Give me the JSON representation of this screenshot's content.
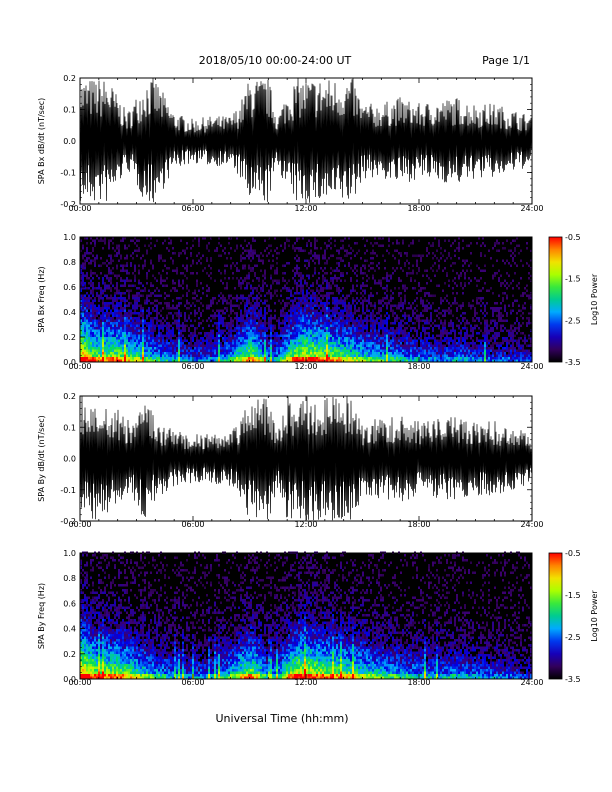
{
  "header": {
    "date_range": "2018/05/10  00:00-24:00 UT",
    "page": "Page 1/1"
  },
  "x_axis": {
    "label": "Universal Time (hh:mm)",
    "ticks": [
      "00:00",
      "06:00",
      "12:00",
      "18:00",
      "24:00"
    ]
  },
  "chart_data": [
    {
      "type": "line",
      "ylabel": "SPA Bx dB/dt (nT/sec)",
      "xlim": [
        0,
        24
      ],
      "ylim": [
        -0.2,
        0.2
      ],
      "yticks": [
        "-0.2",
        "-0.1",
        "0.0",
        "0.1",
        "0.2"
      ],
      "x_unit": "hours UT",
      "amplitude_envelope": {
        "x": [
          0,
          1.5,
          2.5,
          3.5,
          4,
          5,
          6,
          7,
          8,
          8.5,
          9,
          9.5,
          10,
          10.5,
          11,
          11.5,
          12,
          12.5,
          13,
          14,
          14.5,
          15,
          16,
          17,
          18,
          19,
          20,
          21,
          22,
          23,
          24
        ],
        "y": [
          0.2,
          0.2,
          0.09,
          0.2,
          0.2,
          0.09,
          0.07,
          0.08,
          0.08,
          0.12,
          0.2,
          0.2,
          0.2,
          0.08,
          0.16,
          0.2,
          0.2,
          0.2,
          0.2,
          0.2,
          0.2,
          0.12,
          0.12,
          0.14,
          0.12,
          0.13,
          0.14,
          0.12,
          0.12,
          0.1,
          0.08
        ]
      }
    },
    {
      "type": "heatmap",
      "ylabel": "SPA Bx Freq (Hz)",
      "xlim": [
        0,
        24
      ],
      "ylim": [
        0.0,
        1.0
      ],
      "yticks": [
        "0.0",
        "0.2",
        "0.4",
        "0.6",
        "0.8",
        "1.0"
      ],
      "colorbar": {
        "label": "Log10 Power",
        "ticks": [
          "-0.5",
          "-1.5",
          "-2.5",
          "-3.5"
        ],
        "range": [
          -3.5,
          -0.5
        ]
      },
      "activity": {
        "x": [
          0,
          0.5,
          1,
          2,
          3,
          4,
          5,
          6,
          7,
          8,
          8.5,
          9,
          9.5,
          10,
          10.5,
          11,
          11.5,
          12,
          13,
          14,
          15,
          16,
          17,
          18,
          19,
          20,
          21,
          22,
          23,
          24
        ],
        "level": [
          1.0,
          0.8,
          0.7,
          0.75,
          0.6,
          0.45,
          0.35,
          0.3,
          0.3,
          0.45,
          0.6,
          0.75,
          0.6,
          0.35,
          0.4,
          0.65,
          0.8,
          0.85,
          0.75,
          0.65,
          0.55,
          0.45,
          0.4,
          0.35,
          0.3,
          0.35,
          0.3,
          0.25,
          0.25,
          0.2
        ]
      }
    },
    {
      "type": "line",
      "ylabel": "SPA By dB/dt (nT/sec)",
      "xlim": [
        0,
        24
      ],
      "ylim": [
        -0.2,
        0.2
      ],
      "yticks": [
        "-0.2",
        "-0.1",
        "0.0",
        "0.1",
        "0.2"
      ],
      "x_unit": "hours UT",
      "amplitude_envelope": {
        "x": [
          0,
          1.5,
          2.5,
          3.5,
          4,
          5,
          6,
          7,
          8,
          8.5,
          9,
          9.5,
          10,
          10.5,
          11,
          11.5,
          12,
          12.5,
          13,
          14,
          14.5,
          15,
          16,
          17,
          18,
          19,
          20,
          21,
          22,
          23,
          24
        ],
        "y": [
          0.2,
          0.2,
          0.12,
          0.2,
          0.13,
          0.09,
          0.08,
          0.08,
          0.09,
          0.12,
          0.2,
          0.2,
          0.2,
          0.1,
          0.2,
          0.2,
          0.2,
          0.2,
          0.2,
          0.2,
          0.2,
          0.12,
          0.13,
          0.14,
          0.12,
          0.13,
          0.14,
          0.12,
          0.12,
          0.1,
          0.08
        ]
      }
    },
    {
      "type": "heatmap",
      "ylabel": "SPA By Freq (Hz)",
      "xlim": [
        0,
        24
      ],
      "ylim": [
        0.0,
        1.0
      ],
      "yticks": [
        "0.0",
        "0.2",
        "0.4",
        "0.6",
        "0.8",
        "1.0"
      ],
      "colorbar": {
        "label": "Log10 Power",
        "ticks": [
          "-0.5",
          "-1.5",
          "-2.5",
          "-3.5"
        ],
        "range": [
          -3.5,
          -0.5
        ]
      },
      "activity": {
        "x": [
          0,
          0.5,
          1,
          2,
          3,
          4,
          5,
          6,
          7,
          8,
          8.5,
          9,
          9.5,
          10,
          10.5,
          11,
          11.5,
          12,
          13,
          14,
          15,
          16,
          17,
          18,
          19,
          20,
          21,
          22,
          23,
          24
        ],
        "level": [
          1.0,
          0.85,
          0.75,
          0.75,
          0.6,
          0.45,
          0.35,
          0.3,
          0.35,
          0.5,
          0.65,
          0.75,
          0.6,
          0.35,
          0.45,
          0.7,
          0.85,
          0.85,
          0.75,
          0.7,
          0.6,
          0.5,
          0.45,
          0.4,
          0.35,
          0.4,
          0.35,
          0.3,
          0.25,
          0.2
        ]
      }
    }
  ]
}
